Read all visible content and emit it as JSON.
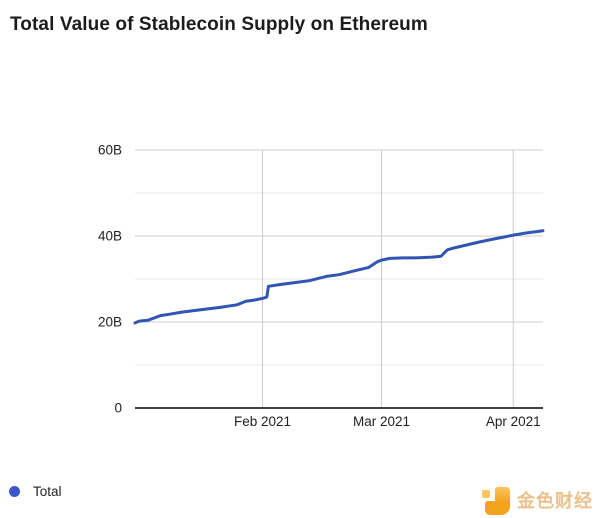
{
  "title": "Total Value of Stablecoin Supply on Ethereum",
  "legend": {
    "label": "Total",
    "dot_color": "#3b57cb"
  },
  "watermark": {
    "text": "金色财经",
    "icon": "jinse-finance-logo",
    "icon_color_main": "#f3a31c",
    "icon_color_light": "#fbc45f",
    "text_color": "#ecc08d"
  },
  "chart_data": {
    "type": "line",
    "title": "Total Value of Stablecoin Supply on Ethereum",
    "xlabel": "",
    "ylabel": "",
    "x_unit": "days (day 0 ≈ early Jan 2021)",
    "x_range": [
      0,
      96
    ],
    "y_range": [
      0,
      60
    ],
    "grid": true,
    "legend_position": "bottom-left",
    "y_ticks": [
      {
        "value": 0,
        "label": "0"
      },
      {
        "value": 20,
        "label": "20B"
      },
      {
        "value": 40,
        "label": "40B"
      },
      {
        "value": 60,
        "label": "60B"
      }
    ],
    "y_minor_gridlines": [
      10,
      30,
      50
    ],
    "x_ticks": [
      {
        "day": 30,
        "label": "Feb 2021"
      },
      {
        "day": 58,
        "label": "Mar 2021"
      },
      {
        "day": 89,
        "label": "Apr 2021"
      }
    ],
    "series": [
      {
        "name": "Total",
        "color": "#3255b4",
        "points_day_valueB": [
          [
            0,
            19.8
          ],
          [
            1,
            20.2
          ],
          [
            3,
            20.4
          ],
          [
            6,
            21.5
          ],
          [
            8,
            21.8
          ],
          [
            11,
            22.3
          ],
          [
            15,
            22.8
          ],
          [
            20,
            23.4
          ],
          [
            24,
            24.0
          ],
          [
            26,
            24.8
          ],
          [
            28,
            25.1
          ],
          [
            30,
            25.5
          ],
          [
            31,
            25.8
          ],
          [
            31.4,
            28.3
          ],
          [
            34,
            28.7
          ],
          [
            38,
            29.2
          ],
          [
            41,
            29.6
          ],
          [
            45,
            30.6
          ],
          [
            48,
            31.0
          ],
          [
            52,
            32.0
          ],
          [
            55,
            32.7
          ],
          [
            57,
            34.0
          ],
          [
            58,
            34.4
          ],
          [
            60,
            34.8
          ],
          [
            63,
            34.9
          ],
          [
            66,
            34.9
          ],
          [
            70,
            35.1
          ],
          [
            72,
            35.3
          ],
          [
            73.5,
            36.8
          ],
          [
            75,
            37.2
          ],
          [
            78,
            37.9
          ],
          [
            81,
            38.6
          ],
          [
            84,
            39.2
          ],
          [
            87,
            39.8
          ],
          [
            89,
            40.2
          ],
          [
            92,
            40.7
          ],
          [
            96,
            41.2
          ]
        ]
      }
    ],
    "colors": {
      "major_grid": "#cccccc",
      "minor_grid": "#e9e9e9",
      "zero_axis": "#424242",
      "tick_label": "#202124"
    }
  }
}
